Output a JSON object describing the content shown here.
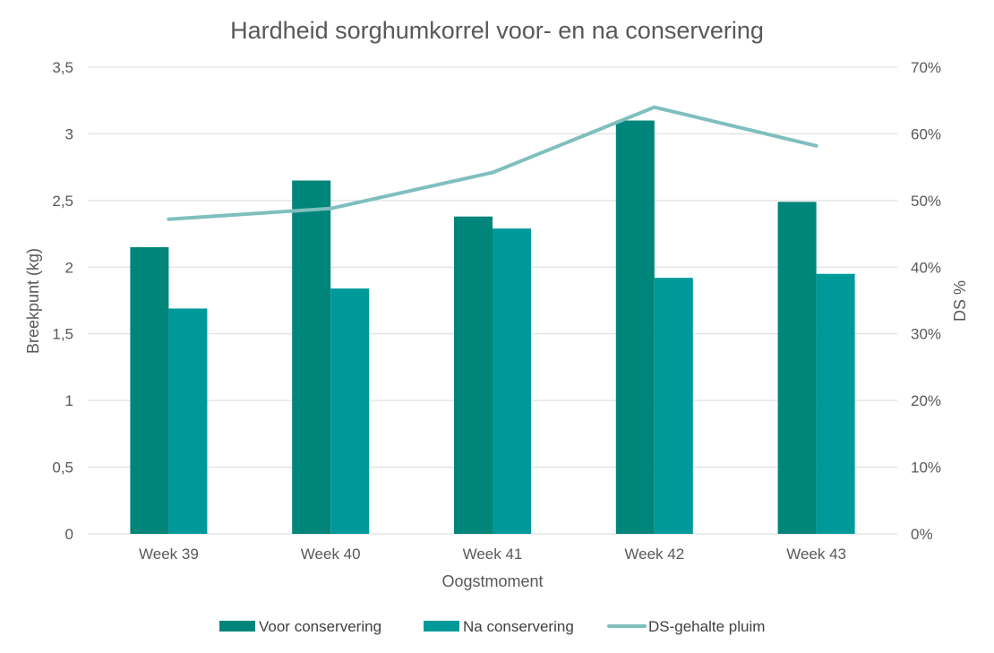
{
  "chart_data": {
    "type": "bar",
    "title": "Hardheid sorghumkorrel voor- en na conservering",
    "xlabel": "Oogstmoment",
    "ylabel": "Breekpunt (kg)",
    "y2label": "DS %",
    "categories": [
      "Week 39",
      "Week 40",
      "Week 41",
      "Week 42",
      "Week 43"
    ],
    "ylim": [
      0,
      3.5
    ],
    "y2lim": [
      0,
      70
    ],
    "yticks": [
      "0",
      "0,5",
      "1",
      "1,5",
      "2",
      "2,5",
      "3",
      "3,5"
    ],
    "y2ticks": [
      "0%",
      "10%",
      "20%",
      "30%",
      "40%",
      "50%",
      "60%",
      "70%"
    ],
    "grid": true,
    "legend_position": "bottom",
    "series": [
      {
        "name": "Voor conservering",
        "type": "bar",
        "axis": "left",
        "color": "#00857a",
        "values": [
          2.15,
          2.65,
          2.38,
          3.1,
          2.49
        ]
      },
      {
        "name": "Na conservering",
        "type": "bar",
        "axis": "left",
        "color": "#00999a",
        "values": [
          1.69,
          1.84,
          2.29,
          1.92,
          1.95
        ]
      },
      {
        "name": "DS-gehalte pluim",
        "type": "line",
        "axis": "right",
        "color": "#7fbfbd",
        "values": [
          47.2,
          48.8,
          54.2,
          64.0,
          58.2
        ]
      }
    ]
  }
}
